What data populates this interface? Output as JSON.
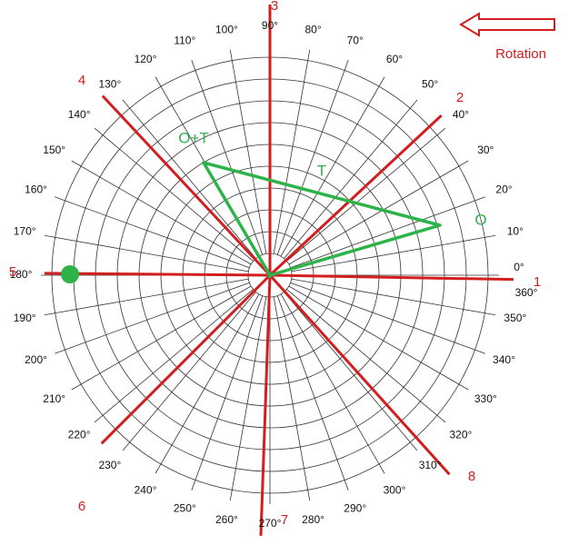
{
  "angle_labels": [
    "0°",
    "10°",
    "20°",
    "30°",
    "40°",
    "50°",
    "60°",
    "70°",
    "80°",
    "90°",
    "100°",
    "110°",
    "120°",
    "130°",
    "140°",
    "150°",
    "160°",
    "170°",
    "180°",
    "190°",
    "200°",
    "210°",
    "220°",
    "230°",
    "240°",
    "250°",
    "260°",
    "270°",
    "280°",
    "290°",
    "300°",
    "310°",
    "320°",
    "330°",
    "340°",
    "350°",
    "360°"
  ],
  "line_numbers": [
    "1",
    "2",
    "3",
    "4",
    "5",
    "6",
    "7",
    "8"
  ],
  "triangle": {
    "top_label": "O+T",
    "side_label": "T",
    "corner_label": "O"
  },
  "rotation_label": "Rotation"
}
